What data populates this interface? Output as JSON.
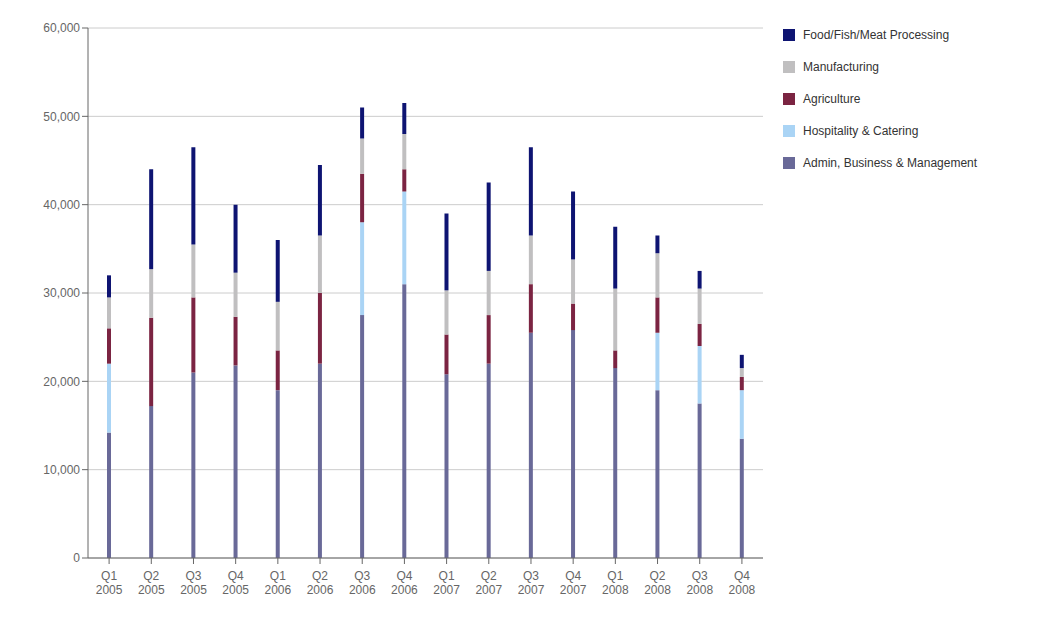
{
  "chart_data": {
    "type": "bar",
    "stacked": true,
    "grid": true,
    "legend": "right",
    "categories": [
      "Q1\n2005",
      "Q2\n2005",
      "Q3\n2005",
      "Q4\n2005",
      "Q1\n2006",
      "Q2\n2006",
      "Q3\n2006",
      "Q4\n2006",
      "Q1\n2007",
      "Q2\n2007",
      "Q3\n2007",
      "Q4\n2007",
      "Q1\n2008",
      "Q2\n2008",
      "Q3\n2008",
      "Q4\n2008"
    ],
    "series": [
      {
        "name": "Admin, Business & Management",
        "color": "#696998",
        "values": [
          14200,
          17200,
          21000,
          21800,
          19000,
          22000,
          27500,
          31000,
          20800,
          22000,
          25500,
          25800,
          21500,
          19000,
          17500,
          13500
        ]
      },
      {
        "name": "Hospitality & Catering",
        "color": "#aad4f5",
        "values": [
          7800,
          0,
          0,
          0,
          0,
          0,
          10500,
          10500,
          0,
          0,
          0,
          0,
          0,
          6500,
          6500,
          5500
        ]
      },
      {
        "name": "Agriculture",
        "color": "#7b2442",
        "values": [
          4000,
          10000,
          8500,
          5500,
          4500,
          8000,
          5500,
          2500,
          4500,
          5500,
          5500,
          3000,
          2000,
          4000,
          2500,
          1500
        ]
      },
      {
        "name": "Manufacturing",
        "color": "#c0bfc0",
        "values": [
          3500,
          5500,
          6000,
          5000,
          5500,
          6500,
          4000,
          4000,
          5000,
          5000,
          5500,
          5000,
          7000,
          5000,
          4000,
          1000
        ]
      },
      {
        "name": "Food/Fish/Meat Processing",
        "color": "#0e1472",
        "values": [
          2500,
          11300,
          11000,
          7700,
          7000,
          8000,
          3500,
          3500,
          8700,
          10000,
          10000,
          7700,
          7000,
          2000,
          2000,
          1500
        ]
      }
    ],
    "ylim": [
      0,
      60000
    ],
    "yticks": [
      0,
      {
        "value": 10000,
        "label": "10,000"
      },
      {
        "value": 20000,
        "label": "20,000"
      },
      {
        "value": 30000,
        "label": "30,000"
      },
      {
        "value": 40000,
        "label": "40,000"
      },
      {
        "value": 50000,
        "label": "50,000"
      },
      {
        "value": 60000,
        "label": "60,000"
      }
    ]
  }
}
